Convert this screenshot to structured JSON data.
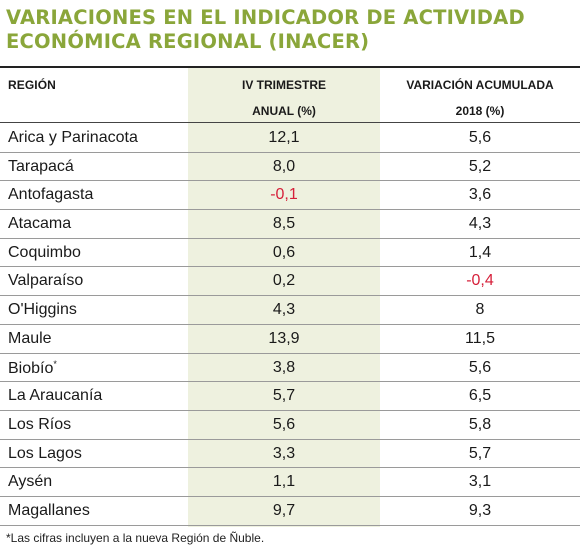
{
  "title": {
    "line1": "VARIACIONES EN EL INDICADOR DE ACTIVIDAD",
    "line2": "ECONÓMICA REGIONAL (INACER)"
  },
  "colors": {
    "title": "#8aa63a",
    "negative": "#d6203a",
    "band": "#eef1df"
  },
  "table": {
    "headers": {
      "region": "REGIÓN",
      "col1_line1": "IV TRIMESTRE",
      "col1_line2": "ANUAL (%)",
      "col2_line1": "VARIACIÓN ACUMULADA",
      "col2_line2": "2018 (%)"
    },
    "rows": [
      {
        "region": "Arica y Parinacota",
        "v1": "12,1",
        "v2": "5,6"
      },
      {
        "region": "Tarapacá",
        "v1": "8,0",
        "v2": "5,2"
      },
      {
        "region": "Antofagasta",
        "v1": "-0,1",
        "v2": "3,6"
      },
      {
        "region": "Atacama",
        "v1": "8,5",
        "v2": "4,3"
      },
      {
        "region": "Coquimbo",
        "v1": "0,6",
        "v2": "1,4"
      },
      {
        "region": "Valparaíso",
        "v1": "0,2",
        "v2": "-0,4"
      },
      {
        "region": "O'Higgins",
        "v1": "4,3",
        "v2": "8"
      },
      {
        "region": "Maule",
        "v1": "13,9",
        "v2": "11,5"
      },
      {
        "region": "Biobío",
        "region_mark": "*",
        "v1": "3,8",
        "v2": "5,6"
      },
      {
        "region": "La Araucanía",
        "v1": "5,7",
        "v2": "6,5"
      },
      {
        "region": "Los Ríos",
        "v1": "5,6",
        "v2": "5,8"
      },
      {
        "region": "Los Lagos",
        "v1": "3,3",
        "v2": "5,7"
      },
      {
        "region": "Aysén",
        "v1": "1,1",
        "v2": "3,1"
      },
      {
        "region": "Magallanes",
        "v1": "9,7",
        "v2": "9,3"
      }
    ]
  },
  "footnote": "*Las cifras incluyen a la nueva Región de Ñuble."
}
